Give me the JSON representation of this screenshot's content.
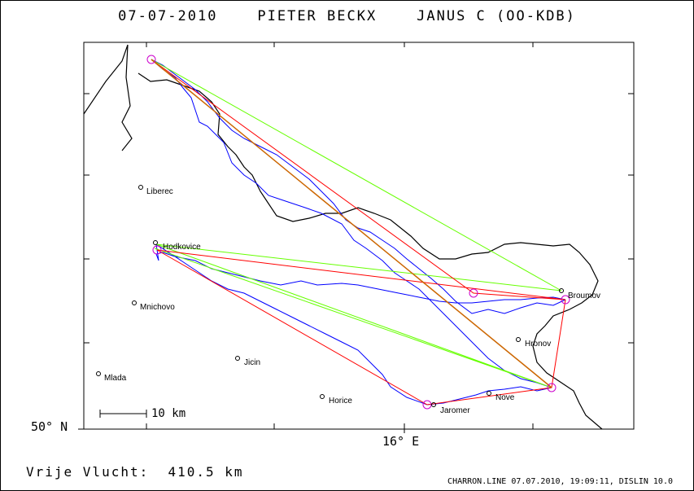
{
  "title": "07-07-2010    PIETER BECKX    JANUS C (OO-KDB)",
  "footer": {
    "distance": "Vrije Vlucht:  410.5 km",
    "credit": "CHARRON.LINE 07.07.2010, 19:09:11, DISLIN 10.0"
  },
  "axes": {
    "lat_label": "50° N",
    "lon_label": "16° E"
  },
  "scale": {
    "label": "10 km"
  },
  "towns": [
    {
      "name": "Liberec"
    },
    {
      "name": "Hodkovice"
    },
    {
      "name": "Mnichovo"
    },
    {
      "name": "Jicin"
    },
    {
      "name": "Mlada"
    },
    {
      "name": "Horice"
    },
    {
      "name": "Jaromer"
    },
    {
      "name": "Nove"
    },
    {
      "name": "Hronov"
    },
    {
      "name": "Broumov"
    }
  ],
  "colors": {
    "track": "#0000ff",
    "border": "#000000",
    "optimized_triangle": "#ff0000",
    "alt_triangle": "#66ff00",
    "straight_leg": "#cc6600",
    "turnpoint": "#cc00cc"
  }
}
